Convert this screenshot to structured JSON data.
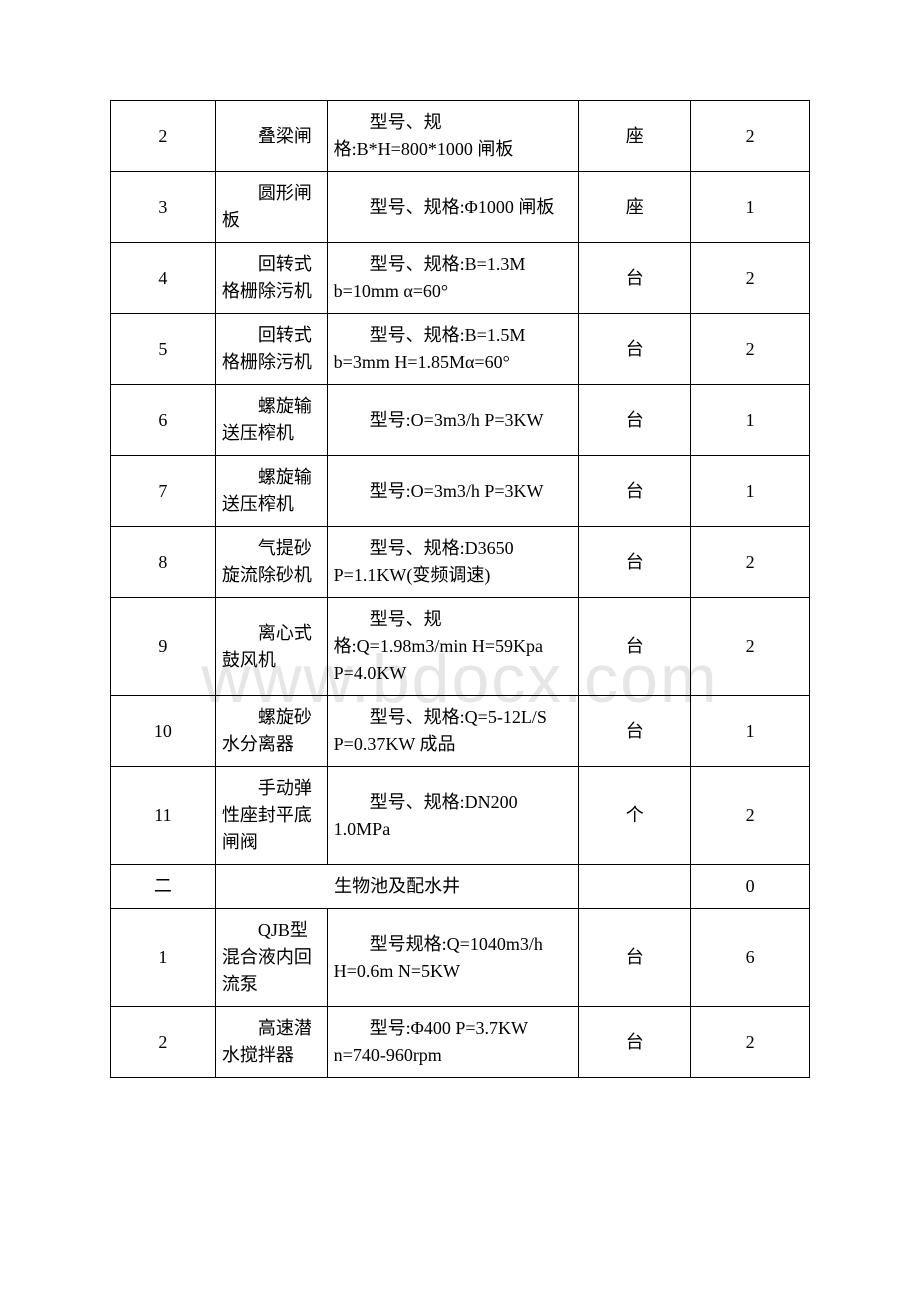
{
  "watermark": "www.bdocx.com",
  "rows": [
    {
      "num": "2",
      "name": "叠梁闸",
      "spec": "型号、规格:B*H=800*1000 闸板",
      "unit": "座",
      "qty": "2"
    },
    {
      "num": "3",
      "name": "圆形闸板",
      "spec": "型号、规格:Φ1000 闸板",
      "unit": "座",
      "qty": "1"
    },
    {
      "num": "4",
      "name": "回转式格栅除污机",
      "spec": "型号、规格:B=1.3M b=10mm α=60°",
      "unit": "台",
      "qty": "2"
    },
    {
      "num": "5",
      "name": "回转式格栅除污机",
      "spec": "型号、规格:B=1.5M b=3mm H=1.85Mα=60°",
      "unit": "台",
      "qty": "2"
    },
    {
      "num": "6",
      "name": "螺旋输送压榨机",
      "spec": "型号:O=3m3/h P=3KW",
      "unit": "台",
      "qty": "1"
    },
    {
      "num": "7",
      "name": "螺旋输送压榨机",
      "spec": "型号:O=3m3/h P=3KW",
      "unit": "台",
      "qty": "1"
    },
    {
      "num": "8",
      "name": "气提砂旋流除砂机",
      "spec": "型号、规格:D3650 P=1.1KW(变频调速)",
      "unit": "台",
      "qty": "2"
    },
    {
      "num": "9",
      "name": "离心式鼓风机",
      "spec": "型号、规格:Q=1.98m3/min H=59Kpa P=4.0KW",
      "unit": "台",
      "qty": "2"
    },
    {
      "num": "10",
      "name": "螺旋砂水分离器",
      "spec": "型号、规格:Q=5-12L/S P=0.37KW 成品",
      "unit": "台",
      "qty": "1"
    },
    {
      "num": "11",
      "name": "手动弹性座封平底闸阀",
      "spec": "型号、规格:DN200 1.0MPa",
      "unit": "个",
      "qty": "2"
    },
    {
      "section": true,
      "num": "二",
      "name": "生物池及配水井",
      "unit": "",
      "qty": "0"
    },
    {
      "num": "1",
      "name": "QJB型混合液内回流泵",
      "spec": "型号规格:Q=1040m3/h H=0.6m N=5KW",
      "unit": "台",
      "qty": "6"
    },
    {
      "num": "2",
      "name": "高速潜水搅拌器",
      "spec": "型号:Φ400 P=3.7KW n=740-960rpm",
      "unit": "台",
      "qty": "2"
    }
  ]
}
